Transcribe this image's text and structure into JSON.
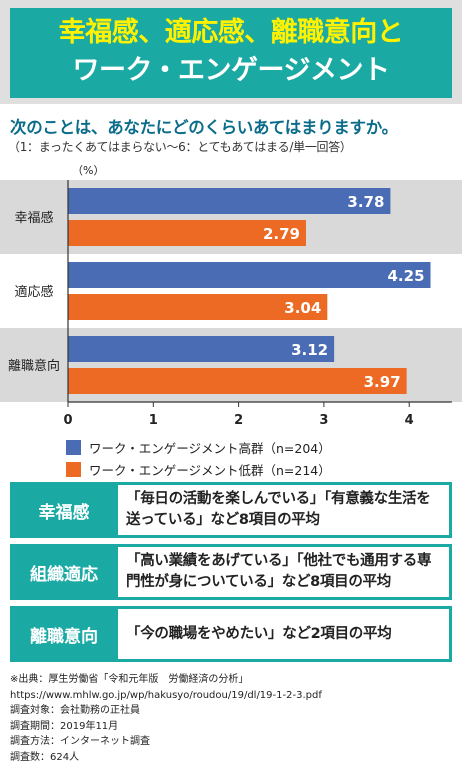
{
  "header": {
    "title_line1": "幸福感、適応感、離職意向と",
    "title_line2": "ワーク・エンゲージメント"
  },
  "question": {
    "text": "次のことは、あなたにどのくらいあてはまりますか。",
    "note": "（1：まったくあてはまらない～6：とてもあてはまる/単一回答）"
  },
  "chart_data": {
    "type": "bar",
    "orientation": "horizontal",
    "unit_label": "（%）",
    "categories": [
      "幸福感",
      "適応感",
      "離職意向"
    ],
    "series": [
      {
        "name": "ワーク・エンゲージメント高群（n=204）",
        "color": "#4a6cb5",
        "values": [
          3.78,
          4.25,
          3.12
        ]
      },
      {
        "name": "ワーク・エンゲージメント低群（n=214）",
        "color": "#ec6a23",
        "values": [
          2.79,
          3.04,
          3.97
        ]
      }
    ],
    "xlim": [
      0,
      4.5
    ],
    "xticks": [
      0,
      1,
      2,
      3,
      4
    ],
    "value_labels": [
      [
        "3.78",
        "4.25",
        "3.12"
      ],
      [
        "2.79",
        "3.04",
        "3.97"
      ]
    ],
    "legend_position": "bottom-left",
    "grid": false
  },
  "definitions": [
    {
      "label": "幸福感",
      "text": "「毎日の活動を楽しんでいる」「有意義な生活を送っている」など8項目の平均"
    },
    {
      "label": "組織適応",
      "text": "「高い業績をあげている」「他社でも通用する専門性が身についている」など8項目の平均"
    },
    {
      "label": "離職意向",
      "text": "「今の職場をやめたい」など2項目の平均"
    }
  ],
  "source": {
    "line1": "※出典：厚生労働省「令和元年版　労働経済の分析」",
    "line2": "https://www.mhlw.go.jp/wp/hakusyo/roudou/19/dl/19-1-2-3.pdf",
    "line3": "調査対象：会社勤務の正社員",
    "line4": "調査期間：2019年11月",
    "line5": "調査方法：インターネット調査",
    "line6": "調査数：624人"
  }
}
